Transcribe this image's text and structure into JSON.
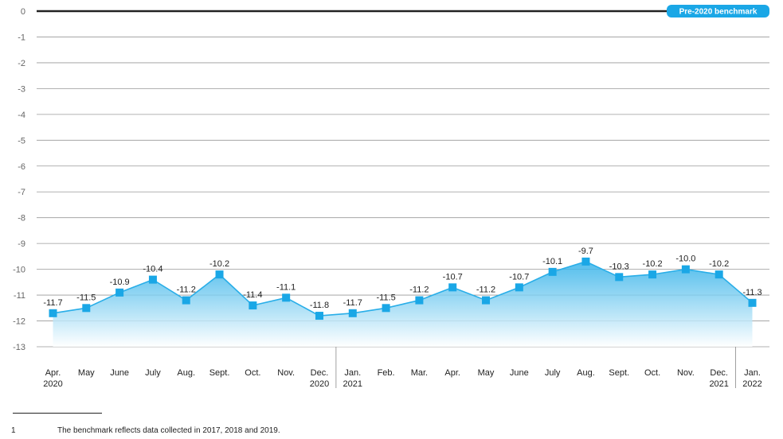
{
  "chart_data": {
    "type": "area",
    "categories": [
      [
        "Apr.",
        "2020"
      ],
      [
        "May",
        ""
      ],
      [
        "June",
        ""
      ],
      [
        "July",
        ""
      ],
      [
        "Aug.",
        ""
      ],
      [
        "Sept.",
        ""
      ],
      [
        "Oct.",
        ""
      ],
      [
        "Nov.",
        ""
      ],
      [
        "Dec.",
        "2020"
      ],
      [
        "Jan.",
        "2021"
      ],
      [
        "Feb.",
        ""
      ],
      [
        "Mar.",
        ""
      ],
      [
        "Apr.",
        ""
      ],
      [
        "May",
        ""
      ],
      [
        "June",
        ""
      ],
      [
        "July",
        ""
      ],
      [
        "Aug.",
        ""
      ],
      [
        "Sept.",
        ""
      ],
      [
        "Oct.",
        ""
      ],
      [
        "Nov.",
        ""
      ],
      [
        "Dec.",
        "2021"
      ],
      [
        "Jan.",
        "2022"
      ]
    ],
    "values": [
      -11.7,
      -11.5,
      -10.9,
      -10.4,
      -11.2,
      -10.2,
      -11.4,
      -11.1,
      -11.8,
      -11.7,
      -11.5,
      -11.2,
      -10.7,
      -11.2,
      -10.7,
      -10.1,
      -9.7,
      -10.3,
      -10.2,
      -10.0,
      -10.2,
      -11.3
    ],
    "data_labels": [
      "-11.7",
      "-11.5",
      "-10.9",
      "-10.4",
      "-11.2",
      "-10.2",
      "-11.4",
      "-11.1",
      "-11.8",
      "-11.7",
      "-11.5",
      "-11.2",
      "-10.7",
      "-11.2",
      "-10.7",
      "-10.1",
      "-9.7",
      "-10.3",
      "-10.2",
      "-10.0",
      "-10.2",
      "-11.3"
    ],
    "ylim": [
      -13,
      0
    ],
    "yticks": [
      0,
      -1,
      -2,
      -3,
      -4,
      -5,
      -6,
      -7,
      -8,
      -9,
      -10,
      -11,
      -12,
      -13
    ],
    "ytick_labels": [
      "0",
      "-1",
      "-2",
      "-3",
      "-4",
      "-5",
      "-6",
      "-7",
      "-8",
      "-9",
      "-10",
      "-11",
      "-12",
      "-13"
    ],
    "year_dividers_after": [
      8,
      20
    ],
    "benchmark": {
      "value": 0,
      "label": "Pre-2020 benchmark"
    },
    "grid": true,
    "colors": {
      "line": "#29aee8",
      "marker": "#1aa7e6",
      "fill_top": "#29aee8",
      "fill_bottom": "#ffffff",
      "benchmark_line": "#222222",
      "benchmark_badge": "#1aa7e6",
      "grid": "#999999"
    }
  },
  "footnote": {
    "number": "1",
    "text": "The benchmark reflects data collected in 2017, 2018 and 2019."
  }
}
